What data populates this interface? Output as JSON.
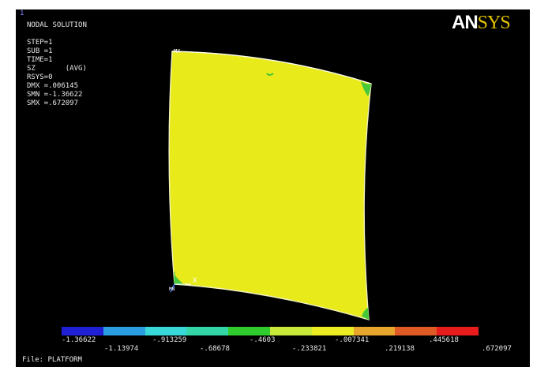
{
  "window_number": "1",
  "logo": {
    "part1": "AN",
    "part2": "SYS"
  },
  "solution": {
    "title": "NODAL SOLUTION",
    "lines": [
      "STEP=1",
      "SUB =1",
      "TIME=1",
      "SZ       (AVG)",
      "RSYS=0",
      "DMX =.006145",
      "SMN =-1.36622",
      "SMX =.672097"
    ]
  },
  "markers": {
    "max": "MX",
    "min": "MN",
    "axis_x": "X"
  },
  "legend": {
    "colors": [
      "#1f1fd6",
      "#2a9ee0",
      "#38d8d8",
      "#33d6a6",
      "#2fcb2f",
      "#c8e83a",
      "#ecec23",
      "#e8a52c",
      "#e05a25",
      "#e81c1c"
    ],
    "upper_labels": [
      "-1.36622",
      "-.913259",
      "-.4603",
      "-.007341",
      ".445618"
    ],
    "lower_labels": [
      "-1.13974",
      "-.68678",
      "-.233821",
      ".219138",
      ".672097"
    ]
  },
  "file_label": "File: PLATFORM",
  "colors": {
    "plate": "#e8ea1a",
    "background": "#000000"
  }
}
